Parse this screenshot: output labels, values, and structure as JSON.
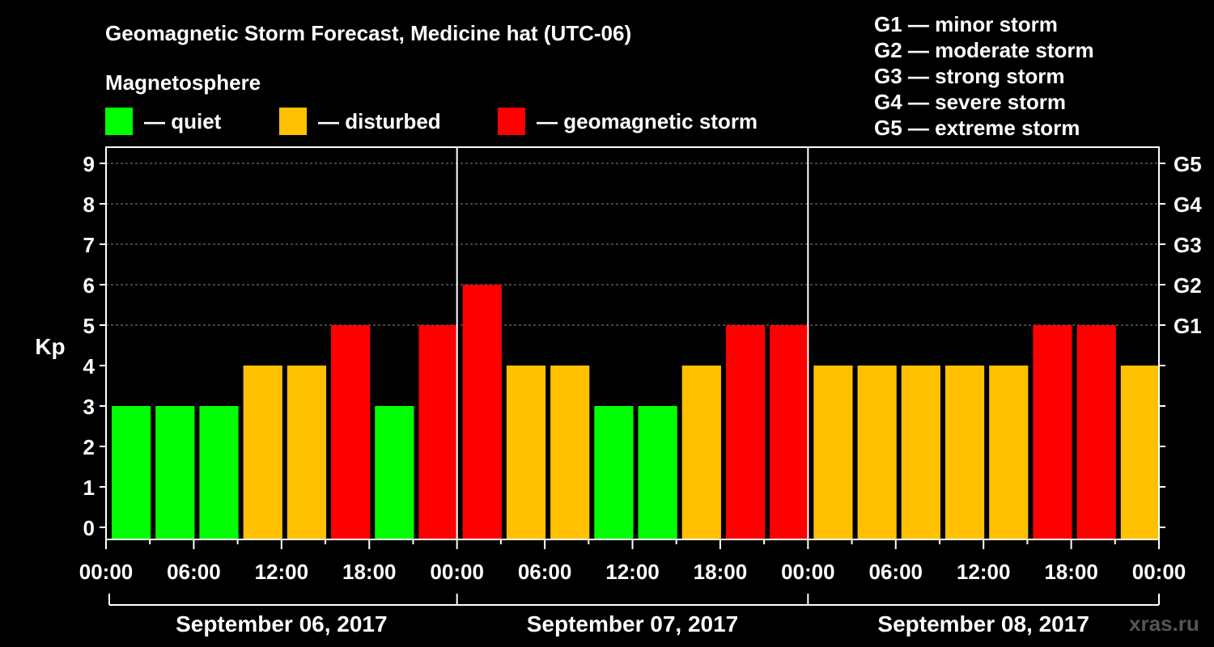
{
  "chart_data": {
    "type": "bar",
    "title": "Geomagnetic Storm Forecast, Medicine hat (UTC-06)",
    "subtitle": "Magnetosphere",
    "ylabel": "Kp",
    "ylim": [
      0,
      9
    ],
    "yticks": [
      "0",
      "1",
      "2",
      "3",
      "4",
      "5",
      "6",
      "7",
      "8",
      "9"
    ],
    "right_ticks": [
      {
        "kp": 5,
        "label": "G1"
      },
      {
        "kp": 6,
        "label": "G2"
      },
      {
        "kp": 7,
        "label": "G3"
      },
      {
        "kp": 8,
        "label": "G4"
      },
      {
        "kp": 9,
        "label": "G5"
      }
    ],
    "xtick_labels": [
      "00:00",
      "06:00",
      "12:00",
      "18:00",
      "00:00",
      "06:00",
      "12:00",
      "18:00",
      "00:00",
      "06:00",
      "12:00",
      "18:00",
      "00:00"
    ],
    "days": [
      "September 06, 2017",
      "September 07, 2017",
      "September 08, 2017"
    ],
    "values": [
      3,
      3,
      3,
      4,
      4,
      5,
      3,
      5,
      6,
      4,
      4,
      3,
      3,
      4,
      5,
      5,
      4,
      4,
      4,
      4,
      4,
      5,
      5,
      4
    ],
    "statuses": [
      "quiet",
      "quiet",
      "quiet",
      "disturbed",
      "disturbed",
      "storm",
      "quiet",
      "storm",
      "storm",
      "disturbed",
      "disturbed",
      "quiet",
      "quiet",
      "disturbed",
      "storm",
      "storm",
      "disturbed",
      "disturbed",
      "disturbed",
      "disturbed",
      "disturbed",
      "storm",
      "storm",
      "disturbed"
    ],
    "colors": {
      "quiet": "#00ff00",
      "disturbed": "#ffc000",
      "storm": "#ff0000"
    },
    "grid": true
  },
  "legend": {
    "quiet": "— quiet",
    "disturbed": "— disturbed",
    "storm": "— geomagnetic storm"
  },
  "g_scale": [
    "G1 — minor storm",
    "G2 — moderate storm",
    "G3 — strong storm",
    "G4 — severe storm",
    "G5 — extreme storm"
  ],
  "watermark": "xras.ru"
}
